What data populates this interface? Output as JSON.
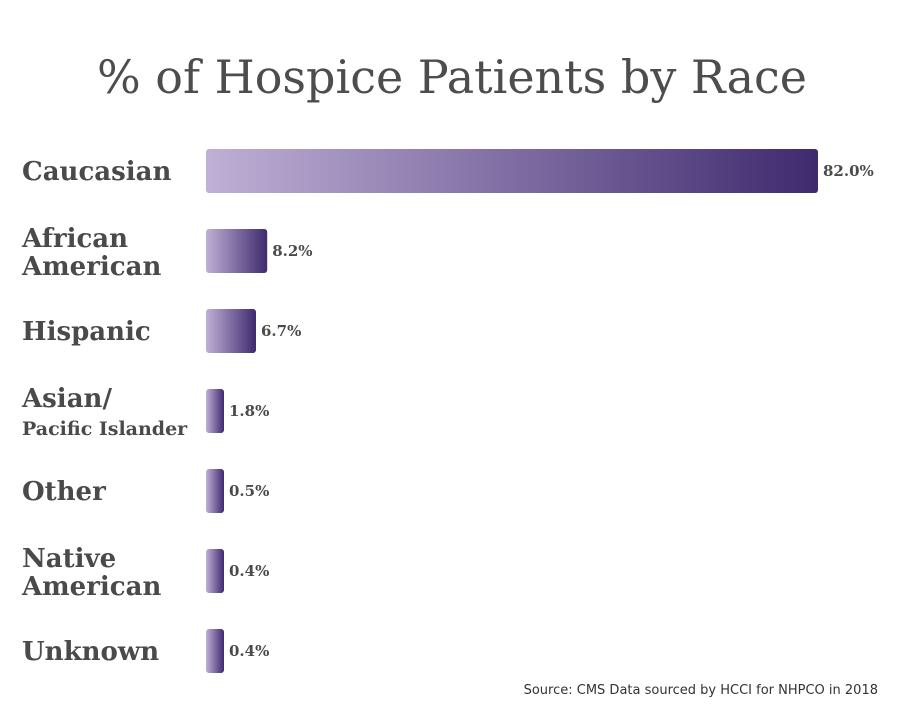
{
  "chart_data": {
    "type": "bar",
    "orientation": "horizontal",
    "title": "% of Hospice Patients by Race",
    "categories": [
      [
        "Caucasian"
      ],
      [
        "African",
        "American"
      ],
      [
        "Hispanic"
      ],
      [
        "Asian/",
        "Pacific Islander"
      ],
      [
        "Other"
      ],
      [
        "Native",
        "American"
      ],
      [
        "Unknown"
      ]
    ],
    "values": [
      82.0,
      8.2,
      6.7,
      1.8,
      0.5,
      0.4,
      0.4
    ],
    "value_labels": [
      "82.0%",
      "8.2%",
      "6.7%",
      "1.8%",
      "0.5%",
      "0.4%",
      "0.4%"
    ],
    "xlim": [
      0,
      82
    ],
    "grid": false,
    "colors": {
      "bar_start": "#bfb0d6",
      "bar_end": "#3e2a6e",
      "text": "#4a4a4a"
    }
  },
  "source": "Source: CMS Data sourced by HCCI for NHPCO in 2018"
}
